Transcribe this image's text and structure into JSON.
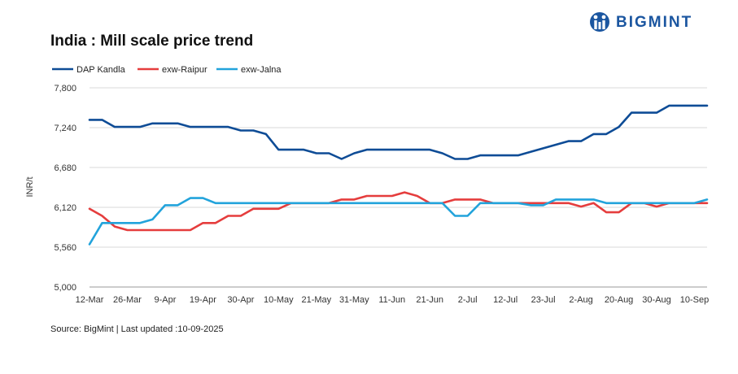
{
  "brand": {
    "name": "BIGMINT",
    "icon": "bigmint-logo-icon",
    "color": "#1b56a0"
  },
  "source_text": "Source: BigMint | Last updated :10-09-2025",
  "chart_data": {
    "type": "line",
    "title": "India : Mill scale price trend",
    "xlabel": "",
    "ylabel": "INR/t",
    "ylim": [
      5000,
      7800
    ],
    "yticks": [
      5000,
      5560,
      6120,
      6680,
      7240,
      7800
    ],
    "ytick_labels": [
      "5,000",
      "5,560",
      "6,120",
      "6,680",
      "7,240",
      "7,800"
    ],
    "xtick_labels": [
      "12-Mar",
      "26-Mar",
      "9-Apr",
      "19-Apr",
      "30-Apr",
      "10-May",
      "21-May",
      "31-May",
      "11-Jun",
      "21-Jun",
      "2-Jul",
      "12-Jul",
      "23-Jul",
      "2-Aug",
      "20-Aug",
      "30-Aug",
      "10-Sep"
    ],
    "xtick_index": [
      0,
      3,
      6,
      9,
      12,
      15,
      18,
      21,
      24,
      27,
      30,
      33,
      36,
      39,
      42,
      45,
      48
    ],
    "grid": "horizontal",
    "legend": "top-left",
    "series": [
      {
        "name": "DAP Kandla",
        "color": "#0e4c96",
        "values": [
          7350,
          7350,
          7250,
          7250,
          7250,
          7300,
          7300,
          7300,
          7250,
          7250,
          7250,
          7250,
          7200,
          7200,
          7150,
          6930,
          6930,
          6930,
          6880,
          6880,
          6800,
          6880,
          6930,
          6930,
          6930,
          6930,
          6930,
          6930,
          6880,
          6800,
          6800,
          6850,
          6850,
          6850,
          6850,
          6900,
          6950,
          7000,
          7050,
          7050,
          7150,
          7150,
          7250,
          7450,
          7450,
          7450,
          7550,
          7550,
          7550,
          7550
        ]
      },
      {
        "name": "exw-Raipur",
        "color": "#e53d3d",
        "values": [
          6100,
          6000,
          5850,
          5800,
          5800,
          5800,
          5800,
          5800,
          5800,
          5900,
          5900,
          6000,
          6000,
          6100,
          6100,
          6100,
          6180,
          6180,
          6180,
          6180,
          6230,
          6230,
          6280,
          6280,
          6280,
          6330,
          6280,
          6180,
          6180,
          6230,
          6230,
          6230,
          6180,
          6180,
          6180,
          6180,
          6180,
          6180,
          6180,
          6130,
          6180,
          6050,
          6050,
          6180,
          6180,
          6130,
          6180,
          6180,
          6180,
          6180
        ]
      },
      {
        "name": "exw-Jalna",
        "color": "#22a3db",
        "values": [
          5600,
          5900,
          5900,
          5900,
          5900,
          5950,
          6150,
          6150,
          6250,
          6250,
          6180,
          6180,
          6180,
          6180,
          6180,
          6180,
          6180,
          6180,
          6180,
          6180,
          6180,
          6180,
          6180,
          6180,
          6180,
          6180,
          6180,
          6180,
          6180,
          6000,
          6000,
          6180,
          6180,
          6180,
          6180,
          6150,
          6150,
          6230,
          6230,
          6230,
          6230,
          6180,
          6180,
          6180,
          6180,
          6180,
          6180,
          6180,
          6180,
          6230
        ]
      }
    ]
  }
}
